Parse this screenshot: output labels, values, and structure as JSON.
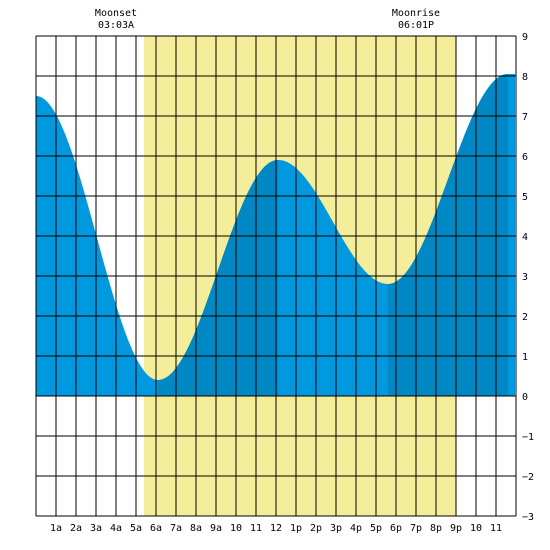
{
  "chart_data": {
    "type": "area",
    "xlabel": "",
    "ylabel": "",
    "xlim": [
      0,
      24
    ],
    "ylim": [
      -3,
      9
    ],
    "grid": true,
    "x_ticks": [
      {
        "x": 1,
        "label": "1a"
      },
      {
        "x": 2,
        "label": "2a"
      },
      {
        "x": 3,
        "label": "3a"
      },
      {
        "x": 4,
        "label": "4a"
      },
      {
        "x": 5,
        "label": "5a"
      },
      {
        "x": 6,
        "label": "6a"
      },
      {
        "x": 7,
        "label": "7a"
      },
      {
        "x": 8,
        "label": "8a"
      },
      {
        "x": 9,
        "label": "9a"
      },
      {
        "x": 10,
        "label": "10"
      },
      {
        "x": 11,
        "label": "11"
      },
      {
        "x": 12,
        "label": "12"
      },
      {
        "x": 13,
        "label": "1p"
      },
      {
        "x": 14,
        "label": "2p"
      },
      {
        "x": 15,
        "label": "3p"
      },
      {
        "x": 16,
        "label": "4p"
      },
      {
        "x": 17,
        "label": "5p"
      },
      {
        "x": 18,
        "label": "6p"
      },
      {
        "x": 19,
        "label": "7p"
      },
      {
        "x": 20,
        "label": "8p"
      },
      {
        "x": 21,
        "label": "9p"
      },
      {
        "x": 22,
        "label": "10"
      },
      {
        "x": 23,
        "label": "11"
      }
    ],
    "y_ticks": [
      {
        "y": 9,
        "label": "9"
      },
      {
        "y": 8,
        "label": "8"
      },
      {
        "y": 7,
        "label": "7"
      },
      {
        "y": 6,
        "label": "6"
      },
      {
        "y": 5,
        "label": "5"
      },
      {
        "y": 4,
        "label": "4"
      },
      {
        "y": 3,
        "label": "3"
      },
      {
        "y": 2,
        "label": "2"
      },
      {
        "y": 1,
        "label": "1"
      },
      {
        "y": 0,
        "label": "0"
      },
      {
        "y": -1,
        "label": "−1"
      },
      {
        "y": -2,
        "label": "−2"
      },
      {
        "y": -3,
        "label": "−3"
      }
    ],
    "daylight": {
      "start": 5.4,
      "end": 21.0
    },
    "tide_extremes": [
      {
        "x": 0.0,
        "y": 7.5
      },
      {
        "x": 6.1,
        "y": 0.4
      },
      {
        "x": 12.1,
        "y": 5.9
      },
      {
        "x": 17.6,
        "y": 2.8
      },
      {
        "x": 23.6,
        "y": 8.05
      }
    ],
    "plot_end_x": 23.95,
    "dark_bands": [
      {
        "from": 6.1,
        "to": 12.1
      },
      {
        "from": 17.6,
        "to": 23.6
      }
    ],
    "annotations": [
      {
        "x": 4.0,
        "title": "Moonset",
        "time": "03:03A"
      },
      {
        "x": 19.0,
        "title": "Moonrise",
        "time": "06:01P"
      }
    ],
    "colors": {
      "daylight": "#f4ee9a",
      "tide": "#0099e0",
      "tide_dark": "#0088c4",
      "grid": "#000000",
      "background": "#ffffff"
    }
  }
}
